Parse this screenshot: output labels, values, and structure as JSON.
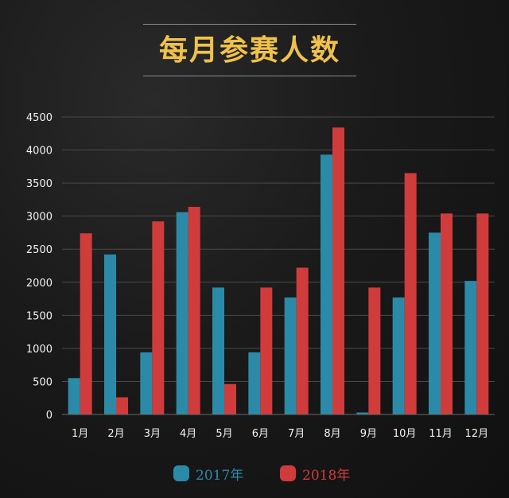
{
  "title": "每月参赛人数",
  "chart_data": {
    "type": "bar",
    "title": "每月参赛人数",
    "xlabel": "",
    "ylabel": "",
    "ylim": [
      0,
      4500
    ],
    "yticks": [
      0,
      500,
      1000,
      1500,
      2000,
      2500,
      3000,
      3500,
      4000,
      4500
    ],
    "grid": true,
    "legend_position": "bottom",
    "categories": [
      "1月",
      "2月",
      "3月",
      "4月",
      "5月",
      "6月",
      "7月",
      "8月",
      "9月",
      "10月",
      "11月",
      "12月"
    ],
    "series": [
      {
        "name": "2017年",
        "color": "#2b8aa8",
        "values": [
          550,
          2420,
          940,
          3060,
          1920,
          940,
          1770,
          3930,
          30,
          1770,
          2750,
          2020
        ]
      },
      {
        "name": "2018年",
        "color": "#d03c3c",
        "values": [
          2740,
          260,
          2920,
          3140,
          460,
          1920,
          2220,
          4340,
          1920,
          3650,
          3040,
          3040
        ]
      }
    ]
  }
}
